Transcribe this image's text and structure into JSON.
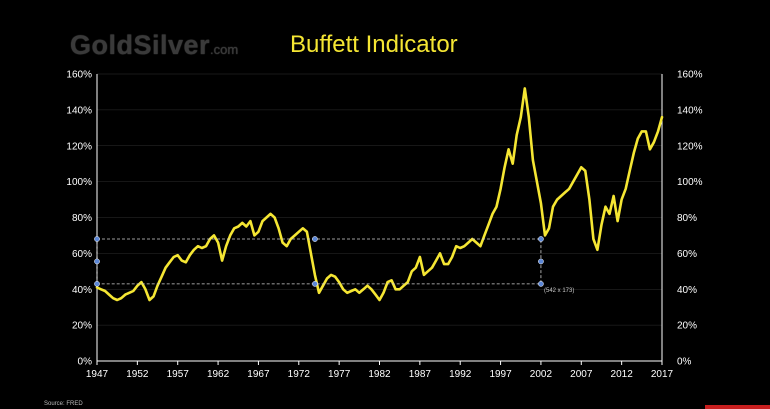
{
  "header": {
    "logo_main": "GoldSilver",
    "logo_suffix": ".com",
    "title": "Buffett Indicator"
  },
  "footer": {
    "source": "Source: FRED"
  },
  "selection": {
    "label": "(542 x 173)"
  },
  "colors": {
    "background": "#000000",
    "line": "#f5e633",
    "axis": "#ffffff",
    "grid": "#ffffff",
    "selection_dash": "#cfcfcf",
    "handle": "#5b86d6"
  },
  "chart_data": {
    "type": "line",
    "title": "Buffett Indicator",
    "xlabel": "",
    "ylabel": "",
    "xlim": [
      1947,
      2017
    ],
    "ylim": [
      0,
      160
    ],
    "x_ticks": [
      "1947",
      "1952",
      "1957",
      "1962",
      "1967",
      "1972",
      "1977",
      "1982",
      "1987",
      "1992",
      "1997",
      "2002",
      "2007",
      "2012",
      "2017"
    ],
    "y_ticks": [
      "0%",
      "20%",
      "40%",
      "60%",
      "80%",
      "100%",
      "120%",
      "140%",
      "160%"
    ],
    "y_ticks_right": [
      "0%",
      "20%",
      "40%",
      "60%",
      "80%",
      "100%",
      "120%",
      "140%",
      "160%"
    ],
    "grid": "horizontal",
    "legend": "none",
    "series": [
      {
        "points": [
          [
            1947,
            41
          ],
          [
            1947.5,
            40
          ],
          [
            1948,
            39
          ],
          [
            1948.5,
            37
          ],
          [
            1949,
            35
          ],
          [
            1949.5,
            34
          ],
          [
            1950,
            35
          ],
          [
            1950.5,
            37
          ],
          [
            1951,
            38
          ],
          [
            1951.5,
            39
          ],
          [
            1952,
            42
          ],
          [
            1952.5,
            44
          ],
          [
            1953,
            40
          ],
          [
            1953.5,
            34
          ],
          [
            1954,
            36
          ],
          [
            1954.5,
            42
          ],
          [
            1955,
            47
          ],
          [
            1955.5,
            52
          ],
          [
            1956,
            55
          ],
          [
            1956.5,
            58
          ],
          [
            1957,
            59
          ],
          [
            1957.5,
            56
          ],
          [
            1958,
            55
          ],
          [
            1958.5,
            59
          ],
          [
            1959,
            62
          ],
          [
            1959.5,
            64
          ],
          [
            1960,
            63
          ],
          [
            1960.5,
            64
          ],
          [
            1961,
            68
          ],
          [
            1961.5,
            70
          ],
          [
            1962,
            66
          ],
          [
            1962.5,
            56
          ],
          [
            1963,
            64
          ],
          [
            1963.5,
            70
          ],
          [
            1964,
            74
          ],
          [
            1964.5,
            75
          ],
          [
            1965,
            77
          ],
          [
            1965.5,
            75
          ],
          [
            1966,
            78
          ],
          [
            1966.5,
            70
          ],
          [
            1967,
            72
          ],
          [
            1967.5,
            78
          ],
          [
            1968,
            80
          ],
          [
            1968.5,
            82
          ],
          [
            1969,
            80
          ],
          [
            1969.5,
            74
          ],
          [
            1970,
            66
          ],
          [
            1970.5,
            64
          ],
          [
            1971,
            68
          ],
          [
            1971.5,
            70
          ],
          [
            1972,
            72
          ],
          [
            1972.5,
            74
          ],
          [
            1973,
            72
          ],
          [
            1973.5,
            60
          ],
          [
            1974,
            48
          ],
          [
            1974.5,
            38
          ],
          [
            1975,
            42
          ],
          [
            1975.5,
            46
          ],
          [
            1976,
            48
          ],
          [
            1976.5,
            47
          ],
          [
            1977,
            44
          ],
          [
            1977.5,
            40
          ],
          [
            1978,
            38
          ],
          [
            1978.5,
            39
          ],
          [
            1979,
            40
          ],
          [
            1979.5,
            38
          ],
          [
            1980,
            40
          ],
          [
            1980.5,
            42
          ],
          [
            1981,
            40
          ],
          [
            1981.5,
            37
          ],
          [
            1982,
            34
          ],
          [
            1982.5,
            38
          ],
          [
            1983,
            44
          ],
          [
            1983.5,
            45
          ],
          [
            1984,
            40
          ],
          [
            1984.5,
            40
          ],
          [
            1985,
            42
          ],
          [
            1985.5,
            44
          ],
          [
            1986,
            50
          ],
          [
            1986.5,
            52
          ],
          [
            1987,
            58
          ],
          [
            1987.5,
            48
          ],
          [
            1988,
            50
          ],
          [
            1988.5,
            52
          ],
          [
            1989,
            56
          ],
          [
            1989.5,
            60
          ],
          [
            1990,
            54
          ],
          [
            1990.5,
            54
          ],
          [
            1991,
            58
          ],
          [
            1991.5,
            64
          ],
          [
            1992,
            63
          ],
          [
            1992.5,
            64
          ],
          [
            1993,
            66
          ],
          [
            1993.5,
            68
          ],
          [
            1994,
            66
          ],
          [
            1994.5,
            64
          ],
          [
            1995,
            70
          ],
          [
            1995.5,
            76
          ],
          [
            1996,
            82
          ],
          [
            1996.5,
            86
          ],
          [
            1997,
            96
          ],
          [
            1997.5,
            108
          ],
          [
            1998,
            118
          ],
          [
            1998.5,
            110
          ],
          [
            1999,
            126
          ],
          [
            1999.5,
            136
          ],
          [
            2000,
            152
          ],
          [
            2000.5,
            136
          ],
          [
            2001,
            112
          ],
          [
            2001.5,
            100
          ],
          [
            2002,
            88
          ],
          [
            2002.5,
            70
          ],
          [
            2003,
            74
          ],
          [
            2003.5,
            86
          ],
          [
            2004,
            90
          ],
          [
            2004.5,
            92
          ],
          [
            2005,
            94
          ],
          [
            2005.5,
            96
          ],
          [
            2006,
            100
          ],
          [
            2006.5,
            104
          ],
          [
            2007,
            108
          ],
          [
            2007.5,
            106
          ],
          [
            2008,
            90
          ],
          [
            2008.5,
            68
          ],
          [
            2009,
            62
          ],
          [
            2009.5,
            76
          ],
          [
            2010,
            86
          ],
          [
            2010.5,
            82
          ],
          [
            2011,
            92
          ],
          [
            2011.5,
            78
          ],
          [
            2012,
            90
          ],
          [
            2012.5,
            96
          ],
          [
            2013,
            106
          ],
          [
            2013.5,
            116
          ],
          [
            2014,
            124
          ],
          [
            2014.5,
            128
          ],
          [
            2015,
            128
          ],
          [
            2015.5,
            118
          ],
          [
            2016,
            122
          ],
          [
            2016.5,
            128
          ],
          [
            2017,
            136
          ]
        ]
      }
    ]
  }
}
